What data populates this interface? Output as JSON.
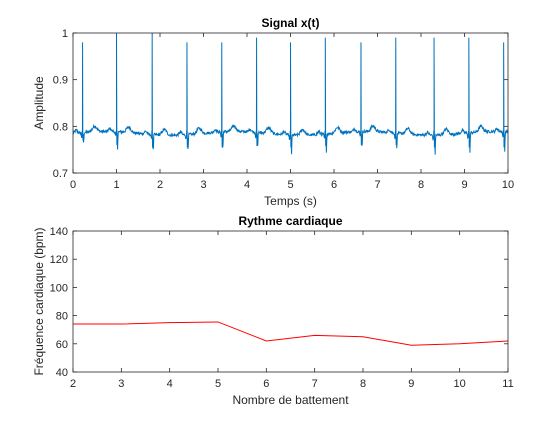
{
  "chart_data": [
    {
      "type": "line",
      "title": "Signal x(t)",
      "xlabel": "Temps (s)",
      "ylabel": "Amplitude",
      "xlim": [
        0,
        10
      ],
      "ylim": [
        0.7,
        1
      ],
      "xticks": [
        0,
        1,
        2,
        3,
        4,
        5,
        6,
        7,
        8,
        9,
        10
      ],
      "yticks": [
        0.7,
        0.8,
        0.9,
        1
      ],
      "ytick_labels": [
        "0.7",
        "0.8",
        "0.9",
        "1"
      ],
      "grid": false,
      "color": "#0072BD",
      "baseline": 0.785,
      "beat_times": [
        0.22,
        1.0,
        1.82,
        2.62,
        3.42,
        4.22,
        5.0,
        5.8,
        6.62,
        7.42,
        8.3,
        9.1,
        9.9
      ],
      "r_peaks": [
        0.98,
        1.0,
        1.0,
        0.98,
        0.98,
        0.99,
        0.98,
        0.99,
        0.98,
        0.99,
        0.99,
        0.99,
        0.98
      ],
      "s_troughs": [
        0.77,
        0.76,
        0.755,
        0.755,
        0.755,
        0.758,
        0.755,
        0.758,
        0.76,
        0.76,
        0.755,
        0.755,
        0.755
      ]
    },
    {
      "type": "line",
      "title": "Rythme cardiaque",
      "xlabel": "Nombre de battement",
      "ylabel": "Fréquence cardiaque (bpm)",
      "xlim": [
        2,
        11
      ],
      "ylim": [
        40,
        140
      ],
      "xticks": [
        2,
        3,
        4,
        5,
        6,
        7,
        8,
        9,
        10,
        11
      ],
      "yticks": [
        40,
        60,
        80,
        100,
        120,
        140
      ],
      "grid": false,
      "color": "#FF0000",
      "x": [
        2,
        3,
        4,
        5,
        6,
        7,
        8,
        9,
        10,
        11
      ],
      "y": [
        74,
        74,
        75,
        75.5,
        62,
        66,
        65,
        59,
        60,
        62
      ]
    }
  ]
}
